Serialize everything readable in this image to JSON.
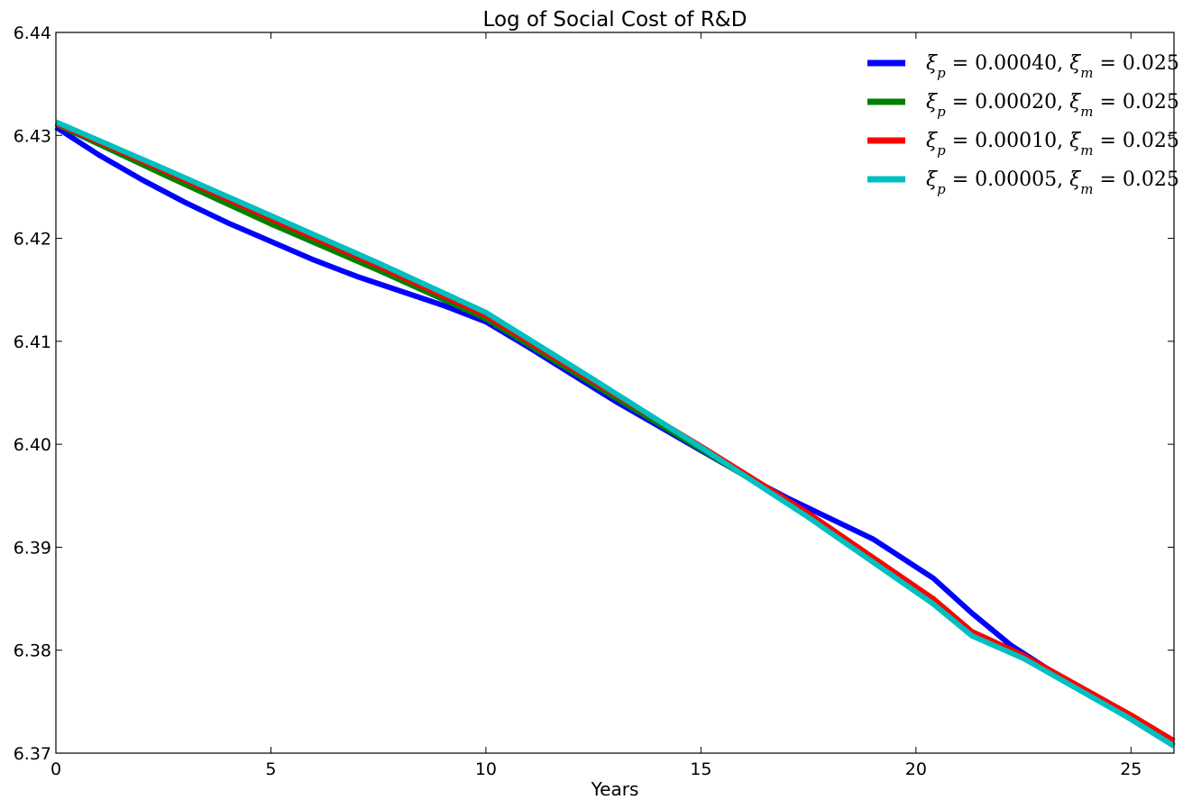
{
  "chart_data": {
    "type": "line",
    "title": "Log of Social Cost of R&D",
    "xlabel": "Years",
    "ylabel": "",
    "xlim": [
      0,
      26
    ],
    "ylim": [
      6.37,
      6.44
    ],
    "xticks": [
      0,
      5,
      10,
      15,
      20,
      25
    ],
    "xtick_labels": [
      "0",
      "5",
      "10",
      "15",
      "20",
      "25"
    ],
    "yticks": [
      6.37,
      6.38,
      6.39,
      6.4,
      6.41,
      6.42,
      6.43,
      6.44
    ],
    "ytick_labels": [
      "6.37",
      "6.38",
      "6.39",
      "6.40",
      "6.41",
      "6.42",
      "6.43",
      "6.44"
    ],
    "grid": false,
    "legend_position": "top-right",
    "series": [
      {
        "name": "ξp = 0.00040, ξm = 0.025",
        "color": "#0000ff",
        "x": [
          0,
          1,
          2,
          3,
          4,
          5,
          6,
          7,
          8,
          9,
          10,
          11,
          12,
          13,
          14,
          15,
          16,
          17,
          18,
          19,
          20.4,
          21.3,
          22.2,
          23.5,
          25,
          26
        ],
        "y": [
          6.4308,
          6.4281,
          6.4257,
          6.4235,
          6.4215,
          6.4197,
          6.4179,
          6.4163,
          6.4149,
          6.4135,
          6.4119,
          6.4094,
          6.4068,
          6.4042,
          6.4018,
          6.3994,
          6.397,
          6.3948,
          6.3928,
          6.3908,
          6.387,
          6.3836,
          6.3805,
          6.377,
          6.3733,
          6.3707
        ]
      },
      {
        "name": "ξp = 0.00020, ξm = 0.025",
        "color": "#008000",
        "x": [
          0,
          2.5,
          5,
          7.5,
          10,
          12.5,
          15,
          17.5,
          20.4,
          21.3,
          22.5,
          25,
          26
        ],
        "y": [
          6.4311,
          6.4262,
          6.4214,
          6.4169,
          6.4122,
          6.4058,
          6.3995,
          6.3932,
          6.385,
          6.3818,
          6.3795,
          6.3735,
          6.3707
        ]
      },
      {
        "name": "ξp = 0.00010, ξm = 0.025",
        "color": "#ff0000",
        "x": [
          0,
          2.5,
          5,
          7.5,
          10,
          12.5,
          15,
          17.5,
          20.4,
          21.3,
          22.5,
          25,
          26
        ],
        "y": [
          6.4312,
          6.4266,
          6.4219,
          6.4173,
          6.4125,
          6.4061,
          6.3998,
          6.3933,
          6.385,
          6.3818,
          6.3795,
          6.3737,
          6.3712
        ]
      },
      {
        "name": "ξp = 0.00005, ξm = 0.025",
        "color": "#00bfbf",
        "x": [
          0,
          2.5,
          5,
          7.5,
          10,
          12.5,
          15,
          17.5,
          20.4,
          21.3,
          22.5,
          25,
          26
        ],
        "y": [
          6.4313,
          6.4268,
          6.4222,
          6.4176,
          6.4128,
          6.4063,
          6.3997,
          6.3929,
          6.3845,
          6.3814,
          6.3792,
          6.3733,
          6.3707
        ]
      }
    ]
  },
  "legend": {
    "items": [
      {
        "subscript_a": "p",
        "value_a": "0.00040",
        "subscript_b": "m",
        "value_b": "0.025"
      },
      {
        "subscript_a": "p",
        "value_a": "0.00020",
        "subscript_b": "m",
        "value_b": "0.025"
      },
      {
        "subscript_a": "p",
        "value_a": "0.00010",
        "subscript_b": "m",
        "value_b": "0.025"
      },
      {
        "subscript_a": "p",
        "value_a": "0.00005",
        "subscript_b": "m",
        "value_b": "0.025"
      }
    ]
  }
}
